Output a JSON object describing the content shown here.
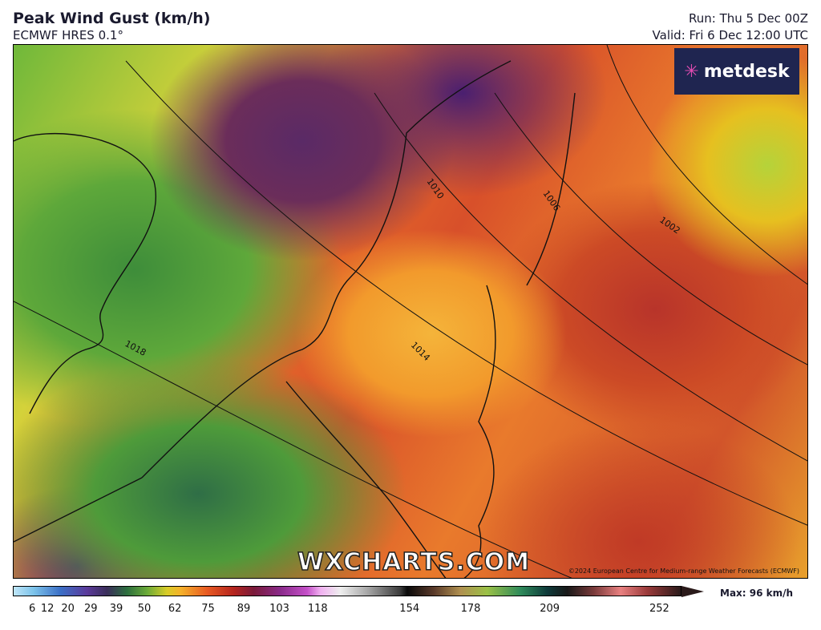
{
  "header": {
    "title": "Peak Wind Gust (km/h)",
    "subtitle": "ECMWF HRES 0.1°",
    "run": "Run: Thu 5 Dec 00Z",
    "valid": "Valid: Fri 6 Dec 12:00 UTC"
  },
  "logo": "metdesk",
  "watermark": "WXCHARTS.COM",
  "credit": "©2024 European Centre for Medium-range Weather Forecasts (ECMWF)",
  "isobars": [
    "1002",
    "1006",
    "1010",
    "1014",
    "1018"
  ],
  "colorbar": {
    "ticks": [
      6,
      12,
      20,
      29,
      39,
      50,
      62,
      75,
      89,
      103,
      118,
      154,
      178,
      209,
      252
    ],
    "max_label": "Max: 96 km/h"
  }
}
